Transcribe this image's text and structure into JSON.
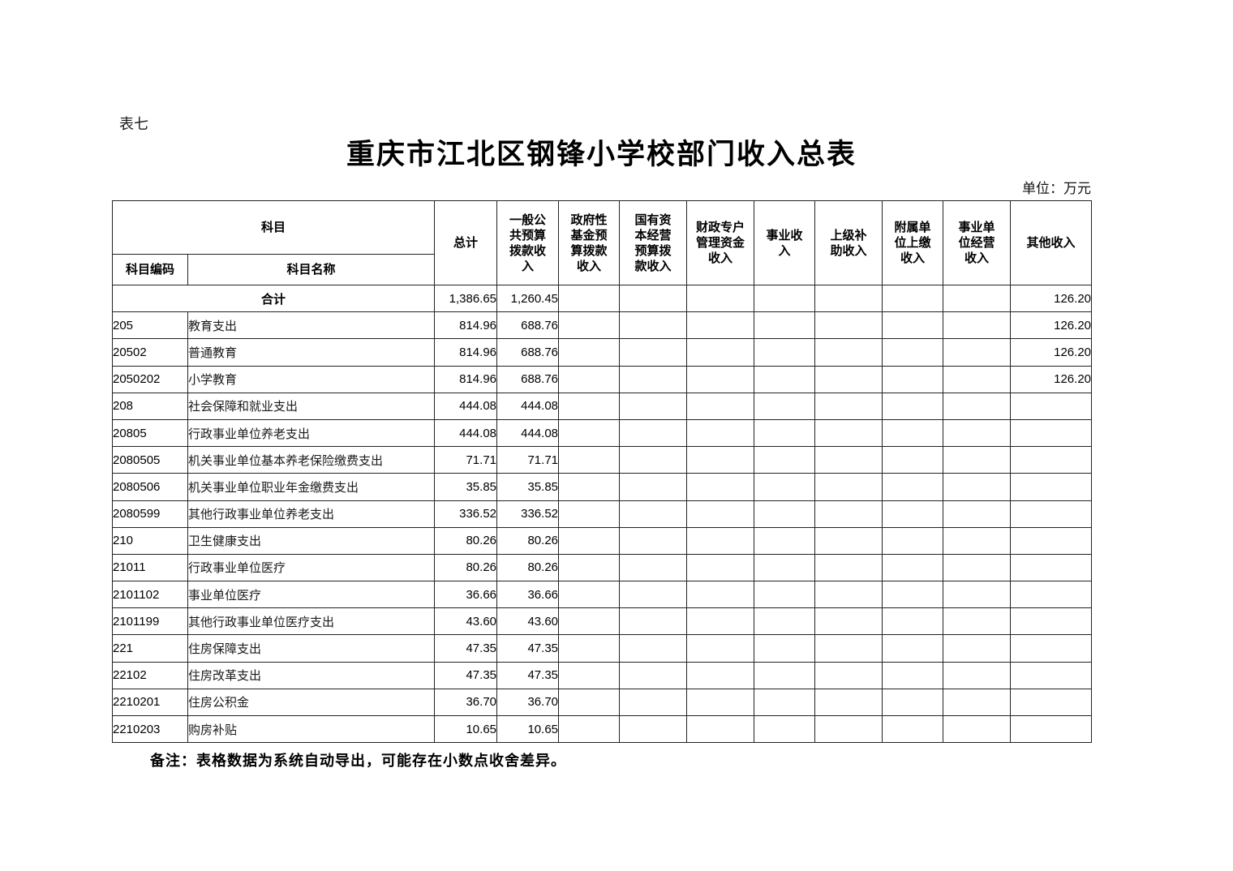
{
  "page": {
    "table_label": "表七",
    "title": "重庆市江北区钢锋小学校部门收入总表",
    "unit_label": "单位：万元",
    "note": "备注：表格数据为系统自动导出，可能存在小数点收舍差异。"
  },
  "table": {
    "header": {
      "subject": "科目",
      "subject_code": "科目编码",
      "subject_name": "科目名称",
      "columns": [
        "总计",
        "一般公\n共预算\n拨款收\n入",
        "政府性\n基金预\n算拨款\n收入",
        "国有资\n本经营\n预算拨\n款收入",
        "财政专户\n管理资金\n收入",
        "事业收\n入",
        "上级补\n助收入",
        "附属单\n位上缴\n收入",
        "事业单\n位经营\n收入",
        "其他收入"
      ]
    },
    "rows": [
      {
        "code": "",
        "name": "合计",
        "level": 0,
        "merged": true,
        "values": [
          "1,386.65",
          "1,260.45",
          "",
          "",
          "",
          "",
          "",
          "",
          "",
          "126.20"
        ]
      },
      {
        "code": "205",
        "name": "教育支出",
        "level": 1,
        "values": [
          "814.96",
          "688.76",
          "",
          "",
          "",
          "",
          "",
          "",
          "",
          "126.20"
        ]
      },
      {
        "code": "20502",
        "name": "普通教育",
        "level": 2,
        "values": [
          "814.96",
          "688.76",
          "",
          "",
          "",
          "",
          "",
          "",
          "",
          "126.20"
        ]
      },
      {
        "code": "2050202",
        "name": "小学教育",
        "level": 3,
        "values": [
          "814.96",
          "688.76",
          "",
          "",
          "",
          "",
          "",
          "",
          "",
          "126.20"
        ]
      },
      {
        "code": "208",
        "name": "社会保障和就业支出",
        "level": 1,
        "values": [
          "444.08",
          "444.08",
          "",
          "",
          "",
          "",
          "",
          "",
          "",
          ""
        ]
      },
      {
        "code": "20805",
        "name": "行政事业单位养老支出",
        "level": 2,
        "values": [
          "444.08",
          "444.08",
          "",
          "",
          "",
          "",
          "",
          "",
          "",
          ""
        ]
      },
      {
        "code": "2080505",
        "name": "机关事业单位基本养老保险缴费支出",
        "level": 3,
        "values": [
          "71.71",
          "71.71",
          "",
          "",
          "",
          "",
          "",
          "",
          "",
          ""
        ]
      },
      {
        "code": "2080506",
        "name": "机关事业单位职业年金缴费支出",
        "level": 3,
        "values": [
          "35.85",
          "35.85",
          "",
          "",
          "",
          "",
          "",
          "",
          "",
          ""
        ]
      },
      {
        "code": "2080599",
        "name": "其他行政事业单位养老支出",
        "level": 3,
        "values": [
          "336.52",
          "336.52",
          "",
          "",
          "",
          "",
          "",
          "",
          "",
          ""
        ]
      },
      {
        "code": "210",
        "name": "卫生健康支出",
        "level": 1,
        "values": [
          "80.26",
          "80.26",
          "",
          "",
          "",
          "",
          "",
          "",
          "",
          ""
        ]
      },
      {
        "code": "21011",
        "name": "行政事业单位医疗",
        "level": 2,
        "values": [
          "80.26",
          "80.26",
          "",
          "",
          "",
          "",
          "",
          "",
          "",
          ""
        ]
      },
      {
        "code": "2101102",
        "name": "事业单位医疗",
        "level": 3,
        "values": [
          "36.66",
          "36.66",
          "",
          "",
          "",
          "",
          "",
          "",
          "",
          ""
        ]
      },
      {
        "code": "2101199",
        "name": "其他行政事业单位医疗支出",
        "level": 3,
        "values": [
          "43.60",
          "43.60",
          "",
          "",
          "",
          "",
          "",
          "",
          "",
          ""
        ]
      },
      {
        "code": "221",
        "name": "住房保障支出",
        "level": 1,
        "values": [
          "47.35",
          "47.35",
          "",
          "",
          "",
          "",
          "",
          "",
          "",
          ""
        ]
      },
      {
        "code": "22102",
        "name": "住房改革支出",
        "level": 2,
        "values": [
          "47.35",
          "47.35",
          "",
          "",
          "",
          "",
          "",
          "",
          "",
          ""
        ]
      },
      {
        "code": "2210201",
        "name": "住房公积金",
        "level": 3,
        "values": [
          "36.70",
          "36.70",
          "",
          "",
          "",
          "",
          "",
          "",
          "",
          ""
        ]
      },
      {
        "code": "2210203",
        "name": "购房补贴",
        "level": 3,
        "values": [
          "10.65",
          "10.65",
          "",
          "",
          "",
          "",
          "",
          "",
          "",
          ""
        ]
      }
    ]
  }
}
